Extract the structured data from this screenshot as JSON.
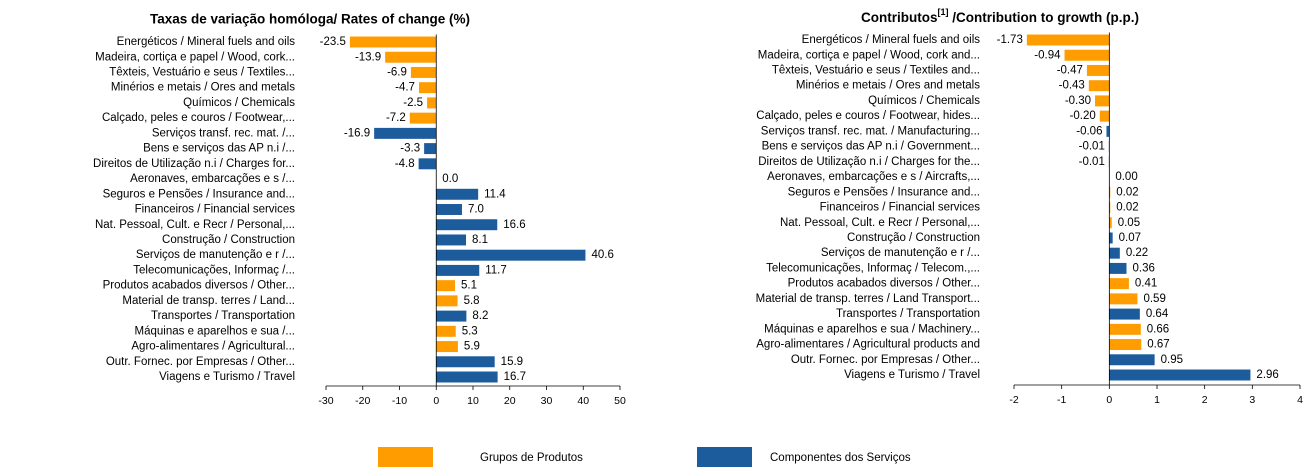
{
  "chart_data": [
    {
      "type": "bar",
      "orientation": "horizontal",
      "title": "Taxas de variação homóloga/ Rates of change (%)",
      "categories": [
        "Energéticos / Mineral fuels and oils",
        "Madeira, cortiça e papel / Wood, cork...",
        "Têxteis, Vestuário e seus  / Textiles...",
        "Minérios e metais / Ores and metals",
        "Químicos / Chemicals",
        "Calçado, peles e couros / Footwear,...",
        "Serviços transf. rec. mat. /...",
        "Bens e serviços das AP n.i /...",
        "Direitos de Utilização n.i / Charges for...",
        "Aeronaves, embarcações e s /...",
        "Seguros e Pensões / Insurance and...",
        "Financeiros / Financial services",
        "Nat. Pessoal, Cult. e Recr / Personal,...",
        "Construção / Construction",
        "Serviços de manutenção e r /...",
        "Telecomunicações, Informaç /...",
        "Produtos acabados diversos / Other...",
        "Material de transp. terres / Land...",
        "Transportes / Transportation",
        "Máquinas e aparelhos e sua /...",
        "Agro-alimentares / Agricultural...",
        "Outr. Fornec. por Empresas / Other...",
        "Viagens e Turismo / Travel"
      ],
      "values": [
        -23.5,
        -13.9,
        -6.9,
        -4.7,
        -2.5,
        -7.2,
        -16.9,
        -3.3,
        -4.8,
        0,
        11.4,
        7,
        16.6,
        8.1,
        40.6,
        11.7,
        5.1,
        5.8,
        8.2,
        5.3,
        5.9,
        15.9,
        16.7
      ],
      "value_labels": [
        "-23.5",
        "-13.9",
        "-6.9",
        "-4.7",
        "-2.5",
        "-7.2",
        "-16.9",
        "-3.3",
        "-4.8",
        "0.0",
        "11.4",
        "7.0",
        "16.6",
        "8.1",
        "40.6",
        "11.7",
        "5.1",
        "5.8",
        "8.2",
        "5.3",
        "5.9",
        "15.9",
        "16.7"
      ],
      "colors": [
        "#ff9c00",
        "#ff9c00",
        "#ff9c00",
        "#ff9c00",
        "#ff9c00",
        "#ff9c00",
        "#1c5c9c",
        "#1c5c9c",
        "#1c5c9c",
        "#1c5c9c",
        "#1c5c9c",
        "#1c5c9c",
        "#1c5c9c",
        "#1c5c9c",
        "#1c5c9c",
        "#1c5c9c",
        "#ff9c00",
        "#ff9c00",
        "#1c5c9c",
        "#ff9c00",
        "#ff9c00",
        "#1c5c9c",
        "#1c5c9c"
      ],
      "xlim": [
        -30,
        50
      ],
      "xticks": [
        -30,
        -20,
        -10,
        0,
        10,
        20,
        30,
        40,
        50
      ]
    },
    {
      "type": "bar",
      "orientation": "horizontal",
      "title": "Contributos",
      "title_superscript": "[1]",
      "title_suffix": " /Contribution  to growth (p.p.)",
      "categories": [
        "Energéticos / Mineral fuels and oils",
        "Madeira, cortiça e papel / Wood, cork and...",
        "Têxteis, Vestuário e seus  / Textiles and...",
        "Minérios e metais / Ores and metals",
        "Químicos / Chemicals",
        "Calçado, peles e couros / Footwear, hides...",
        "Serviços transf. rec. mat. / Manufacturing...",
        "Bens e serviços das AP n.i / Government...",
        "Direitos de Utilização n.i / Charges for the...",
        "Aeronaves, embarcações e s / Aircrafts,...",
        "Seguros e Pensões / Insurance and...",
        "Financeiros / Financial services",
        "Nat. Pessoal, Cult. e Recr / Personal,...",
        "Construção / Construction",
        "Serviços de manutenção e r /...",
        "Telecomunicações, Informaç / Telecom.,...",
        "Produtos acabados diversos / Other...",
        "Material de transp. terres / Land Transport...",
        "Transportes / Transportation",
        "Máquinas e aparelhos e sua / Machinery...",
        "Agro-alimentares / Agricultural products and",
        "Outr. Fornec. por Empresas / Other...",
        "Viagens e Turismo / Travel"
      ],
      "values": [
        -1.73,
        -0.94,
        -0.47,
        -0.43,
        -0.3,
        -0.2,
        -0.06,
        -0.01,
        -0.01,
        0,
        0.02,
        0.02,
        0.05,
        0.07,
        0.22,
        0.36,
        0.41,
        0.59,
        0.64,
        0.66,
        0.67,
        0.95,
        2.96
      ],
      "value_labels": [
        "-1.73",
        "-0.94",
        "-0.47",
        "-0.43",
        "-0.30",
        "-0.20",
        "-0.06",
        "-0.01",
        "-0.01",
        "0.00",
        "0.02",
        "0.02",
        "0.05",
        "0.07",
        "0.22",
        "0.36",
        "0.41",
        "0.59",
        "0.64",
        "0.66",
        "0.67",
        "0.95",
        "2.96"
      ],
      "colors": [
        "#ff9c00",
        "#ff9c00",
        "#ff9c00",
        "#ff9c00",
        "#ff9c00",
        "#ff9c00",
        "#1c5c9c",
        "#1c5c9c",
        "#1c5c9c",
        "#1c5c9c",
        "#ff9c00",
        "#ff9c00",
        "#ff9c00",
        "#1c5c9c",
        "#1c5c9c",
        "#1c5c9c",
        "#ff9c00",
        "#ff9c00",
        "#1c5c9c",
        "#ff9c00",
        "#ff9c00",
        "#1c5c9c",
        "#1c5c9c"
      ],
      "xlim": [
        -2,
        4
      ],
      "xticks": [
        -2,
        -1,
        0,
        1,
        2,
        3,
        4
      ]
    }
  ],
  "legend": [
    {
      "name": "Grupos de Produtos",
      "color": "#ff9c00"
    },
    {
      "name": "Componentes dos Serviços",
      "color": "#1c5c9c"
    }
  ]
}
